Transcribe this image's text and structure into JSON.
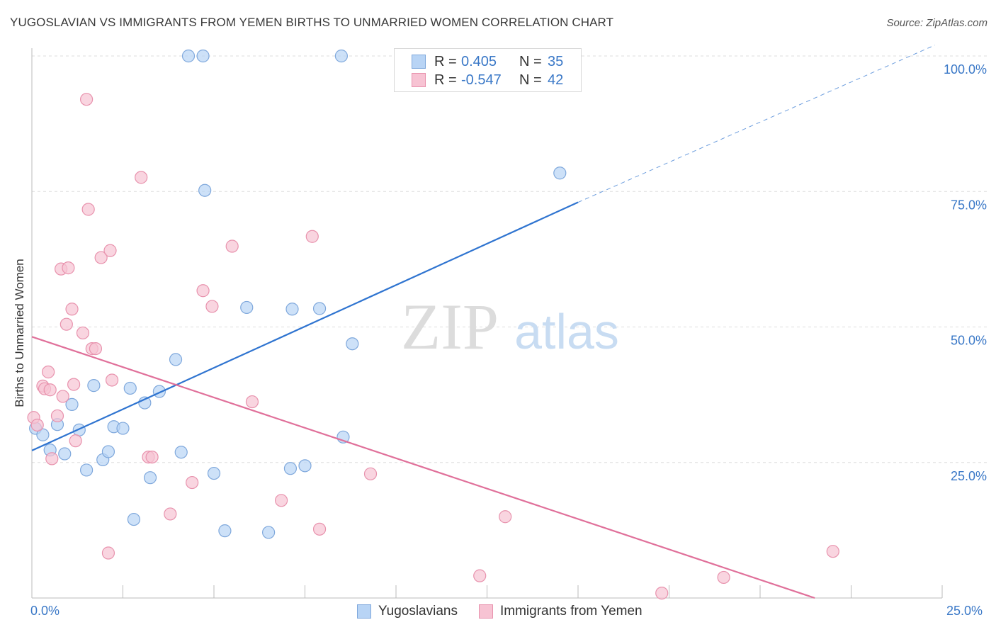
{
  "title": "YUGOSLAVIAN VS IMMIGRANTS FROM YEMEN BIRTHS TO UNMARRIED WOMEN CORRELATION CHART",
  "source": "Source: ZipAtlas.com",
  "watermark": {
    "zip": "ZIP",
    "atlas": "atlas"
  },
  "colors": {
    "blue_fill": "#b8d4f5",
    "blue_stroke": "#7fa8dc",
    "blue_line": "#2f74d0",
    "pink_fill": "#f7c3d3",
    "pink_stroke": "#e892ad",
    "pink_line": "#e0709a",
    "tick_label": "#3a78c7",
    "grid": "#dddddd"
  },
  "legend_top": [
    {
      "r_label": "R =",
      "r_value": "0.405",
      "n_label": "N =",
      "n_value": "35",
      "series": "Yugoslavians"
    },
    {
      "r_label": "R =",
      "r_value": "-0.547",
      "n_label": "N =",
      "n_value": "42",
      "series": "Immigrants from Yemen"
    }
  ],
  "chart_data": {
    "type": "scatter",
    "title": "YUGOSLAVIAN VS IMMIGRANTS FROM YEMEN BIRTHS TO UNMARRIED WOMEN CORRELATION CHART",
    "xlabel": "",
    "ylabel": "Births to Unmarried Women",
    "xlim": [
      0,
      25
    ],
    "ylim": [
      0,
      100
    ],
    "x_tick_labels": [
      "0.0%",
      "25.0%"
    ],
    "y_tick_labels": [
      "100.0%",
      "75.0%",
      "50.0%",
      "25.0%"
    ],
    "y_ticks": [
      100,
      75,
      50,
      25
    ],
    "grid": true,
    "legend_position": "bottom",
    "series": [
      {
        "name": "Yugoslavians",
        "points": [
          [
            0.1,
            31.3
          ],
          [
            0.3,
            30.1
          ],
          [
            0.5,
            27.3
          ],
          [
            0.7,
            32
          ],
          [
            0.9,
            26.6
          ],
          [
            1.1,
            35.7
          ],
          [
            1.3,
            31
          ],
          [
            1.5,
            23.6
          ],
          [
            1.7,
            39.2
          ],
          [
            1.95,
            25.5
          ],
          [
            2.1,
            27
          ],
          [
            2.25,
            31.6
          ],
          [
            2.5,
            31.3
          ],
          [
            2.7,
            38.7
          ],
          [
            2.8,
            14.5
          ],
          [
            3.1,
            36
          ],
          [
            3.25,
            22.2
          ],
          [
            3.5,
            38.1
          ],
          [
            3.95,
            44
          ],
          [
            4.1,
            26.9
          ],
          [
            4.3,
            100
          ],
          [
            4.7,
            100
          ],
          [
            4.75,
            75.2
          ],
          [
            5.0,
            23
          ],
          [
            5.3,
            12.4
          ],
          [
            5.9,
            53.6
          ],
          [
            6.5,
            12.1
          ],
          [
            7.1,
            23.9
          ],
          [
            7.15,
            53.3
          ],
          [
            7.5,
            24.4
          ],
          [
            7.9,
            53.4
          ],
          [
            8.5,
            100
          ],
          [
            8.55,
            29.7
          ],
          [
            8.8,
            46.9
          ],
          [
            14.5,
            78.4
          ]
        ],
        "trend": {
          "x": [
            0,
            15
          ],
          "y": [
            27.2,
            73
          ],
          "dashed_x": [
            15,
            24.8
          ],
          "dashed_y": [
            73,
            102
          ]
        }
      },
      {
        "name": "Immigrants from Yemen",
        "points": [
          [
            0.05,
            33.3
          ],
          [
            0.15,
            31.9
          ],
          [
            0.3,
            39.1
          ],
          [
            0.35,
            38.6
          ],
          [
            0.45,
            41.7
          ],
          [
            0.5,
            38.4
          ],
          [
            0.55,
            25.7
          ],
          [
            0.7,
            33.6
          ],
          [
            0.8,
            60.7
          ],
          [
            0.85,
            37.2
          ],
          [
            0.95,
            50.5
          ],
          [
            1.0,
            60.9
          ],
          [
            1.1,
            53.3
          ],
          [
            1.15,
            39.4
          ],
          [
            1.2,
            29
          ],
          [
            1.4,
            48.9
          ],
          [
            1.5,
            92
          ],
          [
            1.55,
            71.7
          ],
          [
            1.65,
            46
          ],
          [
            1.75,
            46
          ],
          [
            1.9,
            62.8
          ],
          [
            2.1,
            8.3
          ],
          [
            2.15,
            64.1
          ],
          [
            2.2,
            40.2
          ],
          [
            3.0,
            77.6
          ],
          [
            3.2,
            26
          ],
          [
            3.3,
            26
          ],
          [
            3.8,
            15.5
          ],
          [
            4.4,
            21.3
          ],
          [
            4.7,
            56.7
          ],
          [
            4.95,
            53.8
          ],
          [
            5.5,
            64.9
          ],
          [
            6.05,
            36.2
          ],
          [
            6.85,
            18
          ],
          [
            7.7,
            66.7
          ],
          [
            7.9,
            12.7
          ],
          [
            9.3,
            22.9
          ],
          [
            12.3,
            4.1
          ],
          [
            13.0,
            15
          ],
          [
            17.3,
            0.9
          ],
          [
            19.0,
            3.8
          ],
          [
            22.0,
            8.6
          ]
        ],
        "trend": {
          "x": [
            0,
            21.5
          ],
          "y": [
            48.2,
            0
          ]
        }
      }
    ]
  },
  "bottom_legend": [
    "Yugoslavians",
    "Immigrants from Yemen"
  ]
}
